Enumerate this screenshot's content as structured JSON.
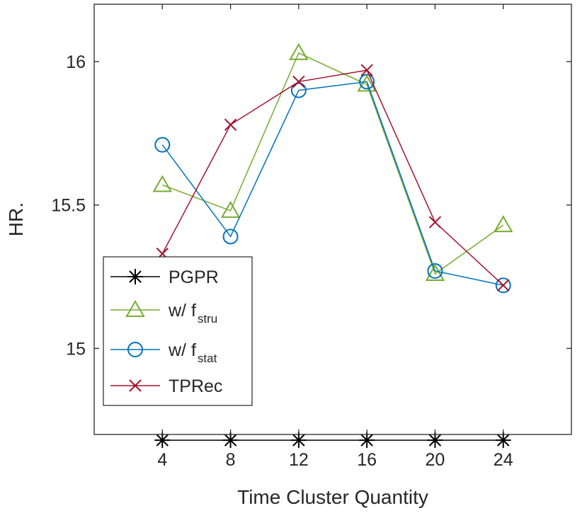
{
  "chart_data": {
    "type": "line",
    "title": "",
    "xlabel": "Time Cluster Quantity",
    "ylabel": "HR.",
    "x": [
      4,
      8,
      12,
      16,
      20,
      24
    ],
    "xlim": [
      0,
      28
    ],
    "ylim": [
      14.7,
      16.2
    ],
    "xticks": [
      "4",
      "8",
      "12",
      "16",
      "20",
      "24"
    ],
    "yticks": [
      {
        "value": 15,
        "label": "15"
      },
      {
        "value": 15.5,
        "label": "15.5"
      },
      {
        "value": 16,
        "label": "16"
      }
    ],
    "grid": false,
    "legend_position": "lower-left",
    "series": [
      {
        "name": "PGPR",
        "name_main": "PGPR",
        "name_sub": "",
        "color": "#000000",
        "marker": "asterisk",
        "values": [
          14.68,
          14.68,
          14.68,
          14.68,
          14.68,
          14.68
        ]
      },
      {
        "name": "w/ f_stru",
        "name_main": "w/ f",
        "name_sub": "stru",
        "color": "#77ac30",
        "marker": "triangle",
        "values": [
          15.57,
          15.48,
          16.03,
          15.92,
          15.26,
          15.43
        ]
      },
      {
        "name": "w/ f_stat",
        "name_main": "w/ f",
        "name_sub": "stat",
        "color": "#0072bd",
        "marker": "circle",
        "values": [
          15.71,
          15.39,
          15.9,
          15.93,
          15.27,
          15.22
        ]
      },
      {
        "name": "TPRec",
        "name_main": "TPRec",
        "name_sub": "",
        "color": "#a2142f",
        "marker": "x",
        "values": [
          15.33,
          15.78,
          15.93,
          15.97,
          15.44,
          15.22
        ]
      }
    ]
  }
}
